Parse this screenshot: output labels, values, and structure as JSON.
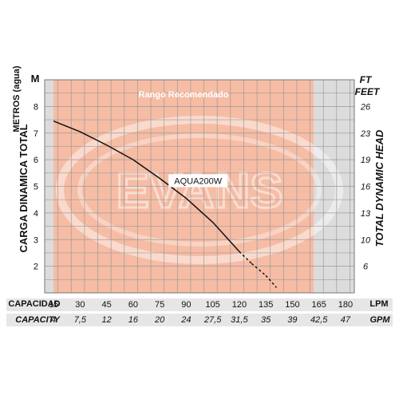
{
  "chart_data": {
    "type": "line",
    "band_label": "Rango Recomendado",
    "watermark": "EVANS",
    "y_left": {
      "title": "CARGA DINAMICA TOTAL",
      "unit_title": "METROS (agua)",
      "unit": "M",
      "ticks": [
        2,
        3,
        4,
        5,
        6,
        7,
        8
      ],
      "range": [
        1,
        9
      ]
    },
    "y_right": {
      "title": "TOTAL DYNAMIC HEAD",
      "unit_ft": "FT",
      "unit_feet": "FEET",
      "ticks": [
        "6",
        "10",
        "13",
        "16",
        "19",
        "23",
        "26"
      ]
    },
    "x_primary": {
      "label": "CAPACIDAD",
      "unit": "LPM",
      "ticks": [
        "15",
        "30",
        "45",
        "60",
        "75",
        "90",
        "105",
        "120",
        "135",
        "150",
        "165",
        "180"
      ],
      "range": [
        10,
        185
      ]
    },
    "x_secondary": {
      "label": "CAPACITY",
      "unit": "GPM",
      "ticks": [
        "4",
        "7,5",
        "12",
        "16",
        "20",
        "24",
        "27,5",
        "31,5",
        "35",
        "39",
        "42,5",
        "47"
      ]
    },
    "recommended_range_lpm": [
      15,
      162
    ],
    "series": [
      {
        "name": "AQUA200W",
        "x": [
          15,
          30,
          45,
          60,
          75,
          90,
          105,
          120,
          127,
          135,
          141
        ],
        "y": [
          7.45,
          7.05,
          6.55,
          6.0,
          5.3,
          4.55,
          3.65,
          2.55,
          2.1,
          1.65,
          1.2
        ]
      }
    ],
    "solid_range_lpm": [
      20,
      120
    ],
    "grid": true,
    "colors": {
      "background": "#dcdcdc",
      "band": "#f7b9a0",
      "band_border": "#e88a70",
      "grid": "#9a9a9a",
      "curve": "#111111",
      "label_box": "#ffffff",
      "band_label_text": "#ffffff"
    }
  }
}
